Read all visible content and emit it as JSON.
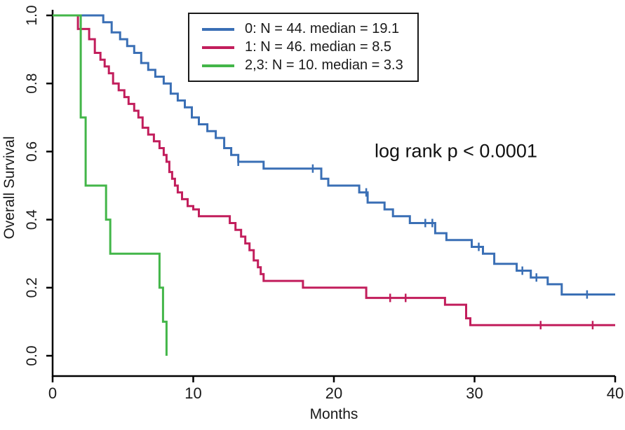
{
  "chart_data": {
    "type": "line",
    "variant": "kaplan_meier_step",
    "title": "",
    "xlabel": "Months",
    "ylabel": "Overall Survival",
    "xlim": [
      0,
      40
    ],
    "ylim": [
      0,
      1
    ],
    "xticks": [
      0,
      10,
      20,
      30,
      40
    ],
    "xtick_labels": [
      "0",
      "10",
      "20",
      "30",
      "40"
    ],
    "yticks": [
      0,
      0.2,
      0.4,
      0.6,
      0.8,
      1.0
    ],
    "ytick_labels": [
      "0.0",
      "0.2",
      "0.4",
      "0.6",
      "0.8",
      "1.0"
    ],
    "grid": false,
    "legend_position": "top-center",
    "annotation": "log rank p < 0.0001",
    "axis_color": "#000000",
    "series": [
      {
        "name": "0: N = 44. median = 19.1",
        "color": "#3a6fb5",
        "points": [
          [
            0,
            1.0
          ],
          [
            3.6,
            0.98
          ],
          [
            4.2,
            0.95
          ],
          [
            4.8,
            0.93
          ],
          [
            5.3,
            0.91
          ],
          [
            5.8,
            0.89
          ],
          [
            6.3,
            0.86
          ],
          [
            6.8,
            0.84
          ],
          [
            7.3,
            0.82
          ],
          [
            7.9,
            0.8
          ],
          [
            8.4,
            0.77
          ],
          [
            8.9,
            0.75
          ],
          [
            9.4,
            0.73
          ],
          [
            9.9,
            0.7
          ],
          [
            10.4,
            0.68
          ],
          [
            11.0,
            0.66
          ],
          [
            11.6,
            0.64
          ],
          [
            12.2,
            0.61
          ],
          [
            12.7,
            0.59
          ],
          [
            13.2,
            0.57
          ],
          [
            15.0,
            0.55
          ],
          [
            19.1,
            0.52
          ],
          [
            19.6,
            0.5
          ],
          [
            21.8,
            0.48
          ],
          [
            22.4,
            0.45
          ],
          [
            23.6,
            0.43
          ],
          [
            24.2,
            0.41
          ],
          [
            25.4,
            0.39
          ],
          [
            27.2,
            0.36
          ],
          [
            28.0,
            0.34
          ],
          [
            29.8,
            0.32
          ],
          [
            30.6,
            0.3
          ],
          [
            31.4,
            0.27
          ],
          [
            33.0,
            0.25
          ],
          [
            34.0,
            0.23
          ],
          [
            35.2,
            0.21
          ],
          [
            36.2,
            0.18
          ],
          [
            40,
            0.18
          ]
        ],
        "censor_x": [
          13.2,
          18.5,
          22.3,
          26.5,
          27.0,
          30.3,
          33.4,
          34.4,
          38.0
        ]
      },
      {
        "name": "1: N = 46. median = 8.5",
        "color": "#c21e5c",
        "points": [
          [
            0,
            1.0
          ],
          [
            1.8,
            0.96
          ],
          [
            2.6,
            0.93
          ],
          [
            3.0,
            0.89
          ],
          [
            3.4,
            0.87
          ],
          [
            3.7,
            0.85
          ],
          [
            4.0,
            0.83
          ],
          [
            4.3,
            0.8
          ],
          [
            4.7,
            0.78
          ],
          [
            5.1,
            0.76
          ],
          [
            5.4,
            0.74
          ],
          [
            5.8,
            0.72
          ],
          [
            6.1,
            0.7
          ],
          [
            6.4,
            0.67
          ],
          [
            6.8,
            0.65
          ],
          [
            7.2,
            0.63
          ],
          [
            7.6,
            0.61
          ],
          [
            7.9,
            0.59
          ],
          [
            8.1,
            0.57
          ],
          [
            8.3,
            0.54
          ],
          [
            8.5,
            0.52
          ],
          [
            8.7,
            0.5
          ],
          [
            8.9,
            0.48
          ],
          [
            9.2,
            0.46
          ],
          [
            9.6,
            0.44
          ],
          [
            10.0,
            0.43
          ],
          [
            10.4,
            0.41
          ],
          [
            12.6,
            0.39
          ],
          [
            13.0,
            0.37
          ],
          [
            13.4,
            0.35
          ],
          [
            13.7,
            0.33
          ],
          [
            14.0,
            0.31
          ],
          [
            14.3,
            0.28
          ],
          [
            14.6,
            0.26
          ],
          [
            14.8,
            0.24
          ],
          [
            15.0,
            0.22
          ],
          [
            17.8,
            0.2
          ],
          [
            22.3,
            0.17
          ],
          [
            27.9,
            0.15
          ],
          [
            29.4,
            0.11
          ],
          [
            29.7,
            0.09
          ],
          [
            40,
            0.09
          ]
        ],
        "censor_x": [
          24.0,
          25.1,
          34.7,
          38.4
        ]
      },
      {
        "name": "2,3: N = 10. median = 3.3",
        "color": "#43b649",
        "points": [
          [
            0,
            1.0
          ],
          [
            2.0,
            0.7
          ],
          [
            2.35,
            0.5
          ],
          [
            3.8,
            0.4
          ],
          [
            4.1,
            0.3
          ],
          [
            7.6,
            0.2
          ],
          [
            7.85,
            0.1
          ],
          [
            8.1,
            0.0
          ]
        ],
        "censor_x": []
      }
    ]
  }
}
